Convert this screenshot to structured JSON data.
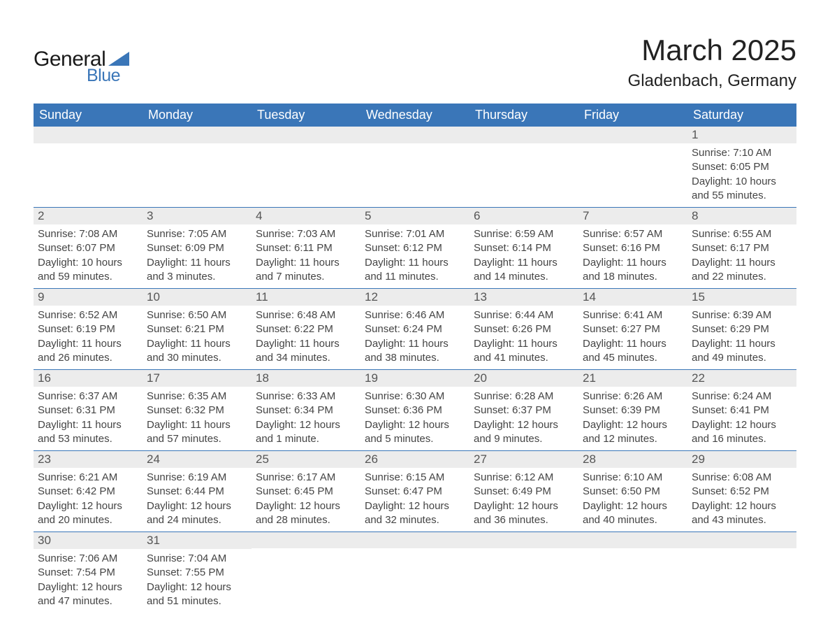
{
  "logo": {
    "text1": "General",
    "text2": "Blue",
    "triangle_color": "#3a76b8"
  },
  "title": "March 2025",
  "location": "Gladenbach, Germany",
  "colors": {
    "header_bg": "#3a76b8",
    "header_fg": "#ffffff",
    "daynum_bg": "#ececec",
    "row_divider": "#3a76b8",
    "text": "#444444"
  },
  "typography": {
    "title_fontsize": 42,
    "location_fontsize": 24,
    "header_fontsize": 18,
    "daynum_fontsize": 17,
    "body_fontsize": 15
  },
  "weekdays": [
    "Sunday",
    "Monday",
    "Tuesday",
    "Wednesday",
    "Thursday",
    "Friday",
    "Saturday"
  ],
  "labels": {
    "sunrise": "Sunrise:",
    "sunset": "Sunset:",
    "daylight": "Daylight:"
  },
  "weeks": [
    [
      null,
      null,
      null,
      null,
      null,
      null,
      {
        "d": "1",
        "sr": "7:10 AM",
        "ss": "6:05 PM",
        "dl": "10 hours and 55 minutes."
      }
    ],
    [
      {
        "d": "2",
        "sr": "7:08 AM",
        "ss": "6:07 PM",
        "dl": "10 hours and 59 minutes."
      },
      {
        "d": "3",
        "sr": "7:05 AM",
        "ss": "6:09 PM",
        "dl": "11 hours and 3 minutes."
      },
      {
        "d": "4",
        "sr": "7:03 AM",
        "ss": "6:11 PM",
        "dl": "11 hours and 7 minutes."
      },
      {
        "d": "5",
        "sr": "7:01 AM",
        "ss": "6:12 PM",
        "dl": "11 hours and 11 minutes."
      },
      {
        "d": "6",
        "sr": "6:59 AM",
        "ss": "6:14 PM",
        "dl": "11 hours and 14 minutes."
      },
      {
        "d": "7",
        "sr": "6:57 AM",
        "ss": "6:16 PM",
        "dl": "11 hours and 18 minutes."
      },
      {
        "d": "8",
        "sr": "6:55 AM",
        "ss": "6:17 PM",
        "dl": "11 hours and 22 minutes."
      }
    ],
    [
      {
        "d": "9",
        "sr": "6:52 AM",
        "ss": "6:19 PM",
        "dl": "11 hours and 26 minutes."
      },
      {
        "d": "10",
        "sr": "6:50 AM",
        "ss": "6:21 PM",
        "dl": "11 hours and 30 minutes."
      },
      {
        "d": "11",
        "sr": "6:48 AM",
        "ss": "6:22 PM",
        "dl": "11 hours and 34 minutes."
      },
      {
        "d": "12",
        "sr": "6:46 AM",
        "ss": "6:24 PM",
        "dl": "11 hours and 38 minutes."
      },
      {
        "d": "13",
        "sr": "6:44 AM",
        "ss": "6:26 PM",
        "dl": "11 hours and 41 minutes."
      },
      {
        "d": "14",
        "sr": "6:41 AM",
        "ss": "6:27 PM",
        "dl": "11 hours and 45 minutes."
      },
      {
        "d": "15",
        "sr": "6:39 AM",
        "ss": "6:29 PM",
        "dl": "11 hours and 49 minutes."
      }
    ],
    [
      {
        "d": "16",
        "sr": "6:37 AM",
        "ss": "6:31 PM",
        "dl": "11 hours and 53 minutes."
      },
      {
        "d": "17",
        "sr": "6:35 AM",
        "ss": "6:32 PM",
        "dl": "11 hours and 57 minutes."
      },
      {
        "d": "18",
        "sr": "6:33 AM",
        "ss": "6:34 PM",
        "dl": "12 hours and 1 minute."
      },
      {
        "d": "19",
        "sr": "6:30 AM",
        "ss": "6:36 PM",
        "dl": "12 hours and 5 minutes."
      },
      {
        "d": "20",
        "sr": "6:28 AM",
        "ss": "6:37 PM",
        "dl": "12 hours and 9 minutes."
      },
      {
        "d": "21",
        "sr": "6:26 AM",
        "ss": "6:39 PM",
        "dl": "12 hours and 12 minutes."
      },
      {
        "d": "22",
        "sr": "6:24 AM",
        "ss": "6:41 PM",
        "dl": "12 hours and 16 minutes."
      }
    ],
    [
      {
        "d": "23",
        "sr": "6:21 AM",
        "ss": "6:42 PM",
        "dl": "12 hours and 20 minutes."
      },
      {
        "d": "24",
        "sr": "6:19 AM",
        "ss": "6:44 PM",
        "dl": "12 hours and 24 minutes."
      },
      {
        "d": "25",
        "sr": "6:17 AM",
        "ss": "6:45 PM",
        "dl": "12 hours and 28 minutes."
      },
      {
        "d": "26",
        "sr": "6:15 AM",
        "ss": "6:47 PM",
        "dl": "12 hours and 32 minutes."
      },
      {
        "d": "27",
        "sr": "6:12 AM",
        "ss": "6:49 PM",
        "dl": "12 hours and 36 minutes."
      },
      {
        "d": "28",
        "sr": "6:10 AM",
        "ss": "6:50 PM",
        "dl": "12 hours and 40 minutes."
      },
      {
        "d": "29",
        "sr": "6:08 AM",
        "ss": "6:52 PM",
        "dl": "12 hours and 43 minutes."
      }
    ],
    [
      {
        "d": "30",
        "sr": "7:06 AM",
        "ss": "7:54 PM",
        "dl": "12 hours and 47 minutes."
      },
      {
        "d": "31",
        "sr": "7:04 AM",
        "ss": "7:55 PM",
        "dl": "12 hours and 51 minutes."
      },
      null,
      null,
      null,
      null,
      null
    ]
  ]
}
